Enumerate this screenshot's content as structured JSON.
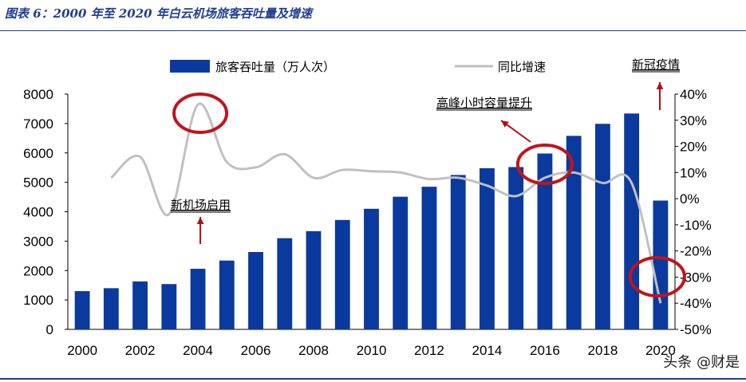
{
  "figure_title": "图表 6：2000 年至 2020 年白云机场旅客吞吐量及增速",
  "watermark": "头条 @财是",
  "chart_data": {
    "type": "bar+line",
    "title": "",
    "categories": [
      "2000",
      "2001",
      "2002",
      "2003",
      "2004",
      "2005",
      "2006",
      "2007",
      "2008",
      "2009",
      "2010",
      "2011",
      "2012",
      "2013",
      "2014",
      "2015",
      "2016",
      "2017",
      "2018",
      "2019",
      "2020"
    ],
    "series": [
      {
        "name": "旅客吞吐量（万人次）",
        "type": "bar",
        "axis": "left",
        "color": "#0a3a9e",
        "values": [
          1300,
          1400,
          1630,
          1540,
          2060,
          2340,
          2630,
          3100,
          3340,
          3720,
          4100,
          4510,
          4850,
          5250,
          5480,
          5520,
          5980,
          6580,
          6990,
          7340,
          4380
        ]
      },
      {
        "name": "同比增速",
        "type": "line",
        "axis": "right",
        "color": "#c0c0c0",
        "values": [
          null,
          8.0,
          16.0,
          -6.0,
          36.0,
          14.0,
          12.0,
          17.0,
          8.0,
          11.0,
          10.5,
          10.0,
          7.5,
          8.0,
          5.0,
          1.0,
          8.0,
          10.0,
          6.0,
          6.0,
          -40.0
        ]
      }
    ],
    "y_left": {
      "min": 0,
      "max": 8000,
      "ticks": [
        "0",
        "1000",
        "2000",
        "3000",
        "4000",
        "5000",
        "6000",
        "7000",
        "8000"
      ]
    },
    "y_right": {
      "min": -50,
      "max": 40,
      "ticks": [
        "-50%",
        "-40%",
        "-30%",
        "-20%",
        "-10%",
        "0%",
        "10%",
        "20%",
        "30%",
        "40%"
      ]
    },
    "x_tick_labels": [
      "2000",
      "2002",
      "2004",
      "2006",
      "2008",
      "2010",
      "2012",
      "2014",
      "2016",
      "2018",
      "2020"
    ],
    "legend": {
      "position": "top",
      "bar_label": "旅客吞吐量（万人次）",
      "line_label": "同比增速"
    },
    "annotations": [
      {
        "text": "新机场启用",
        "category": "2004"
      },
      {
        "text": "高峰小时容量提升",
        "category": "2016"
      },
      {
        "text": "新冠疫情",
        "category": "2020"
      }
    ],
    "highlight_color": "#c0141c",
    "arrow_color": "#b01010",
    "grid": false
  }
}
